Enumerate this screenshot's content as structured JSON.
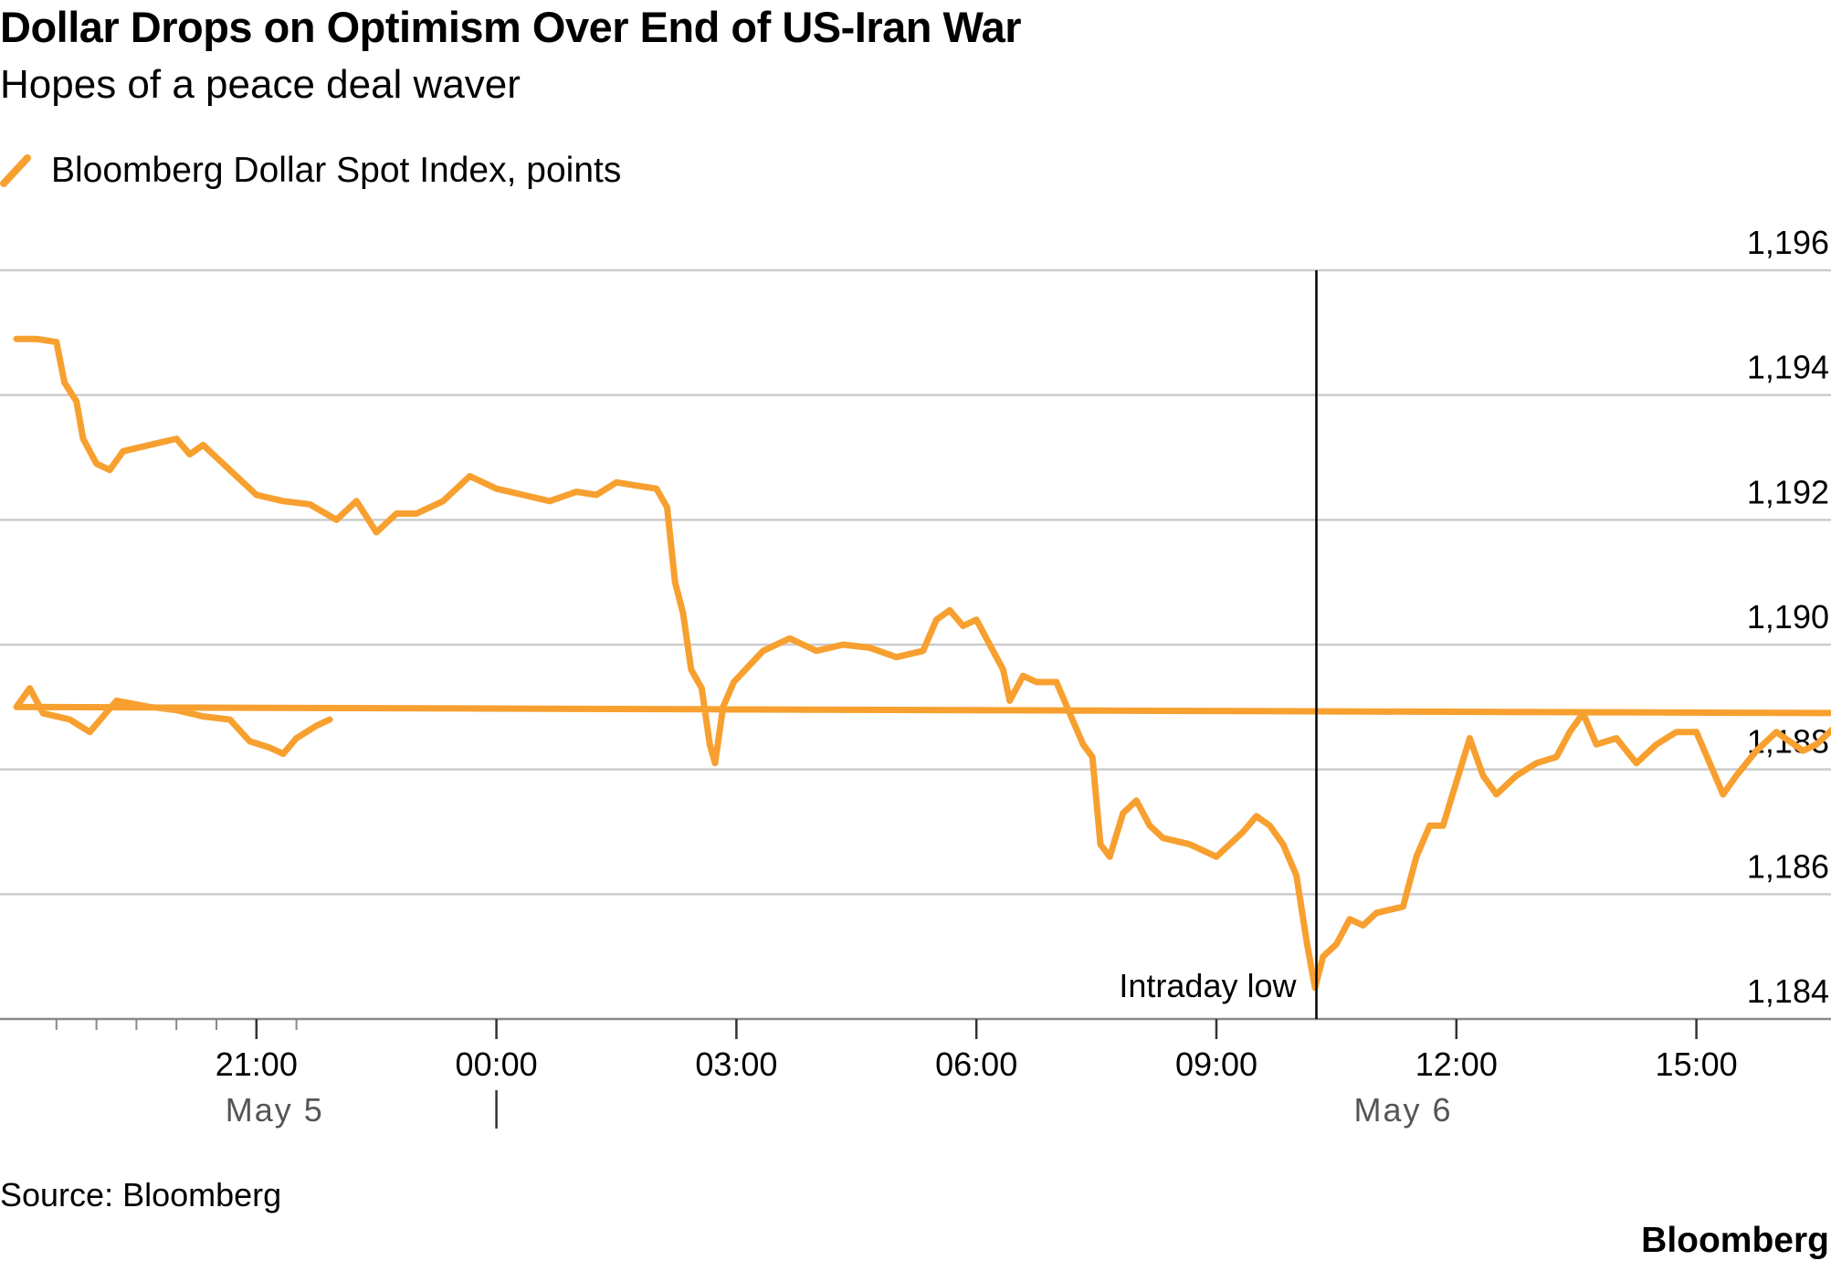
{
  "title": "Dollar Drops on Optimism Over End of US-Iran War",
  "subtitle": "Hopes of a peace deal waver",
  "source": "Source: Bloomberg",
  "brand": "Bloomberg",
  "colors": {
    "series": "#F7A030",
    "grid": "#cccccc",
    "axis": "#888888",
    "text": "#000000",
    "date_label": "#555555"
  },
  "chart_data": {
    "type": "line",
    "legend_position": "top-left",
    "grid": true,
    "series": [
      {
        "name": "Bloomberg Dollar Spot Index, points",
        "points": [
          [
            "18:00",
            1194.9
          ],
          [
            "18:15",
            1194.9
          ],
          [
            "18:30",
            1194.85
          ],
          [
            "18:36",
            1194.2
          ],
          [
            "18:45",
            1193.9
          ],
          [
            "18:50",
            1193.3
          ],
          [
            "19:00",
            1192.9
          ],
          [
            "19:10",
            1192.8
          ],
          [
            "19:20",
            1193.1
          ],
          [
            "19:40",
            1193.2
          ],
          [
            "20:00",
            1193.3
          ],
          [
            "20:10",
            1193.05
          ],
          [
            "20:20",
            1193.2
          ],
          [
            "20:30",
            1193.0
          ],
          [
            "20:40",
            1192.8
          ],
          [
            "21:00",
            1192.4
          ],
          [
            "21:20",
            1192.3
          ],
          [
            "21:40",
            1192.25
          ],
          [
            "22:00",
            1192.0
          ],
          [
            "22:15",
            1192.3
          ],
          [
            "22:30",
            1191.8
          ],
          [
            "22:45",
            1192.1
          ],
          [
            "23:00",
            1192.1
          ],
          [
            "23:20",
            1192.3
          ],
          [
            "23:40",
            1192.7
          ],
          [
            "00:00",
            1192.5
          ],
          [
            "00:20",
            1192.4
          ],
          [
            "00:40",
            1192.3
          ],
          [
            "01:00",
            1192.45
          ],
          [
            "01:15",
            1192.4
          ],
          [
            "01:30",
            1192.6
          ],
          [
            "01:45",
            1192.55
          ],
          [
            "02:00",
            1192.5
          ],
          [
            "02:08",
            1192.2
          ],
          [
            "02:14",
            1191.0
          ],
          [
            "02:20",
            1190.5
          ],
          [
            "02:26",
            1189.6
          ],
          [
            "02:34",
            1189.3
          ],
          [
            "02:40",
            1188.4
          ],
          [
            "02:44",
            1188.1
          ],
          [
            "02:50",
            1189.0
          ],
          [
            "02:58",
            1189.4
          ],
          [
            "03:20",
            1189.9
          ],
          [
            "03:40",
            1190.1
          ],
          [
            "04:00",
            1189.9
          ],
          [
            "04:20",
            1190.0
          ],
          [
            "04:40",
            1189.95
          ],
          [
            "05:00",
            1189.8
          ],
          [
            "05:20",
            1189.9
          ],
          [
            "05:30",
            1190.4
          ],
          [
            "05:40",
            1190.55
          ],
          [
            "05:50",
            1190.3
          ],
          [
            "06:00",
            1190.4
          ],
          [
            "06:10",
            1190.0
          ],
          [
            "06:20",
            1189.6
          ],
          [
            "06:25",
            1189.1
          ],
          [
            "06:35",
            1189.5
          ],
          [
            "06:45",
            1189.4
          ],
          [
            "07:00",
            1189.4
          ],
          [
            "07:10",
            1188.9
          ],
          [
            "07:20",
            1188.4
          ],
          [
            "07:27",
            1188.2
          ],
          [
            "07:33",
            1186.8
          ],
          [
            "07:40",
            1186.6
          ],
          [
            "07:50",
            1187.3
          ],
          [
            "08:00",
            1187.5
          ],
          [
            "08:10",
            1187.1
          ],
          [
            "08:20",
            1186.9
          ],
          [
            "08:40",
            1186.8
          ],
          [
            "09:00",
            1186.6
          ],
          [
            "09:20",
            1187.0
          ],
          [
            "09:30",
            1187.25
          ],
          [
            "09:40",
            1187.1
          ],
          [
            "09:50",
            1186.8
          ],
          [
            "10:00",
            1186.3
          ],
          [
            "10:08",
            1185.2
          ],
          [
            "10:14",
            1184.5
          ],
          [
            "10:20",
            1185.0
          ],
          [
            "10:30",
            1185.2
          ],
          [
            "10:40",
            1185.6
          ],
          [
            "10:50",
            1185.5
          ],
          [
            "11:00",
            1185.7
          ],
          [
            "11:20",
            1185.8
          ],
          [
            "11:30",
            1186.6
          ],
          [
            "11:40",
            1187.1
          ],
          [
            "11:50",
            1187.1
          ],
          [
            "12:00",
            1187.8
          ],
          [
            "12:10",
            1188.5
          ],
          [
            "12:20",
            1187.9
          ],
          [
            "12:30",
            1187.6
          ],
          [
            "12:45",
            1187.9
          ],
          [
            "13:00",
            1188.1
          ],
          [
            "13:15",
            1188.2
          ],
          [
            "13:25",
            1188.6
          ],
          [
            "13:35",
            1188.9
          ],
          [
            "13:45",
            1188.4
          ],
          [
            "14:00",
            1188.5
          ],
          [
            "14:15",
            1188.1
          ],
          [
            "14:30",
            1188.4
          ],
          [
            "14:45",
            1188.6
          ],
          [
            "15:00",
            1188.6
          ],
          [
            "15:10",
            1188.1
          ],
          [
            "15:20",
            1187.6
          ],
          [
            "15:30",
            1187.9
          ],
          [
            "15:45",
            1188.3
          ],
          [
            "16:00",
            1188.6
          ],
          [
            "16:20",
            1188.3
          ],
          [
            "16:30",
            1188.4
          ],
          [
            "16:50",
            1188.8
          ],
          [
            "17:05",
            1189.05
          ],
          [
            "17:20",
            1188.9
          ],
          [
            "17:40",
            1188.9
          ],
          [
            "18:00",
            1189.0
          ],
          [
            "18:10",
            1189.3
          ],
          [
            "18:20",
            1188.9
          ],
          [
            "18:40",
            1188.8
          ],
          [
            "18:55",
            1188.6
          ],
          [
            "19:15",
            1189.1
          ],
          [
            "19:40",
            1189.0
          ],
          [
            "20:00",
            1188.95
          ],
          [
            "20:20",
            1188.85
          ],
          [
            "20:40",
            1188.8
          ],
          [
            "20:55",
            1188.45
          ],
          [
            "21:10",
            1188.35
          ],
          [
            "21:20",
            1188.25
          ],
          [
            "21:30",
            1188.5
          ],
          [
            "21:45",
            1188.7
          ],
          [
            "21:55",
            1188.8
          ]
        ]
      }
    ],
    "x_ticks": [
      "21:00",
      "00:00",
      "03:00",
      "06:00",
      "09:00",
      "12:00",
      "15:00"
    ],
    "date_labels": [
      "May 5",
      "May 6"
    ],
    "y_ticks": [
      "1,196",
      "1,194",
      "1,192",
      "1,190",
      "1,188",
      "1,186",
      "1,184"
    ],
    "ylim": [
      1184,
      1196
    ],
    "annotation": {
      "label": "Intraday low",
      "x": "10:15",
      "y": 1184.5
    }
  }
}
